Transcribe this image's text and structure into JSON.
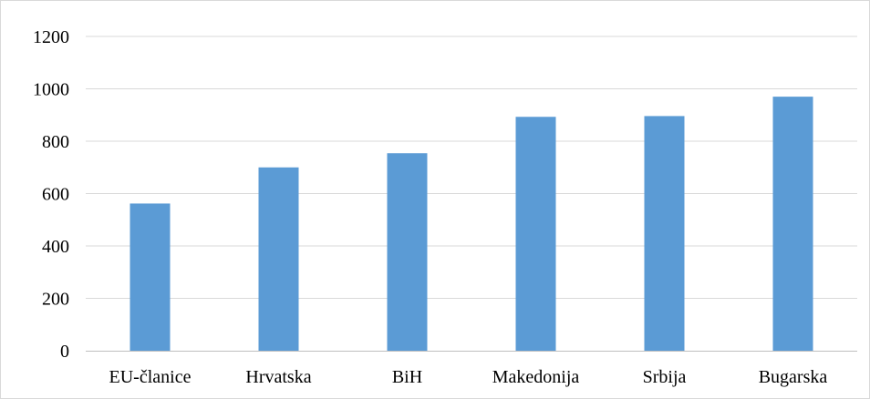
{
  "chart_data": {
    "type": "bar",
    "categories": [
      "EU-članice",
      "Hrvatska",
      "BiH",
      "Makedonija",
      "Srbija",
      "Bugarska"
    ],
    "values": [
      562,
      700,
      754,
      893,
      896,
      970
    ],
    "ylim": [
      0,
      1200
    ],
    "yticks": [
      "0",
      "200",
      "400",
      "600",
      "800",
      "1000",
      "1200"
    ],
    "grid": true,
    "legend": "none",
    "colors": {
      "bar": "#5b9bd5",
      "grid": "#d9d9d9",
      "axis": "#bfbfbf",
      "frame": "#d9d9d9"
    }
  }
}
